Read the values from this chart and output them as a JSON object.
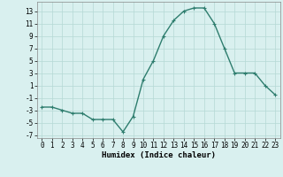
{
  "x": [
    0,
    1,
    2,
    3,
    4,
    5,
    6,
    7,
    8,
    9,
    10,
    11,
    12,
    13,
    14,
    15,
    16,
    17,
    18,
    19,
    20,
    21,
    22,
    23
  ],
  "y": [
    -2.5,
    -2.5,
    -3,
    -3.5,
    -3.5,
    -4.5,
    -4.5,
    -4.5,
    -6.5,
    -4,
    2,
    5,
    9,
    11.5,
    13,
    13.5,
    13.5,
    11,
    7,
    3,
    3,
    3,
    1,
    -0.5
  ],
  "line_color": "#2e7d6e",
  "marker": "+",
  "marker_size": 3,
  "marker_edge_width": 0.8,
  "bg_color": "#d9f0ef",
  "grid_color": "#b5d8d5",
  "xlabel": "Humidex (Indice chaleur)",
  "xlim": [
    -0.5,
    23.5
  ],
  "ylim": [
    -7.5,
    14.5
  ],
  "xticks": [
    0,
    1,
    2,
    3,
    4,
    5,
    6,
    7,
    8,
    9,
    10,
    11,
    12,
    13,
    14,
    15,
    16,
    17,
    18,
    19,
    20,
    21,
    22,
    23
  ],
  "yticks": [
    -7,
    -5,
    -3,
    -1,
    1,
    3,
    5,
    7,
    9,
    11,
    13
  ],
  "xlabel_fontsize": 6.5,
  "tick_fontsize": 5.5,
  "line_width": 1.0
}
